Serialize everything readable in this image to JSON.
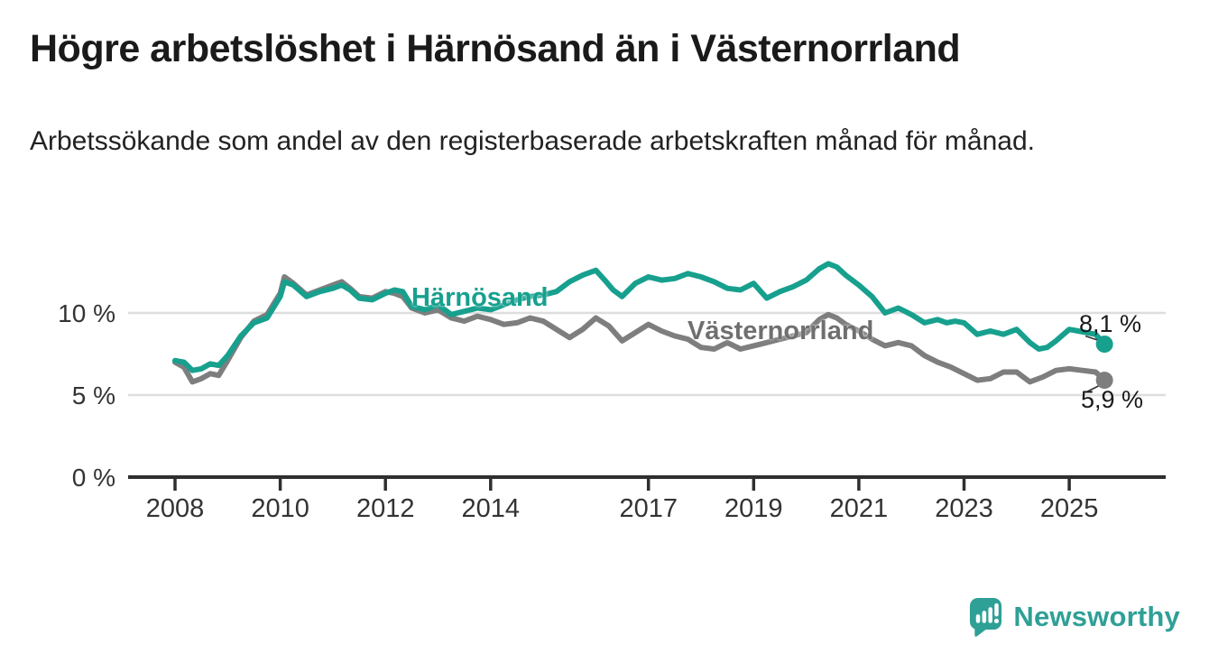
{
  "header": {
    "title": "Högre arbetslöshet i Härnösand än i Västernorrland",
    "subtitle": "Arbetssökande som andel av den registerbaserade arbetskraften månad för månad."
  },
  "chart_data": {
    "type": "line",
    "title": "Högre arbetslöshet i Härnösand än i Västernorrland",
    "subtitle": "Arbetssökande som andel av den registerbaserade arbetskraften månad för månad.",
    "xlabel": "",
    "ylabel": "",
    "unit": "%",
    "grid": "horizontal",
    "legend_position": "inline-labels-on-lines",
    "x_axis": {
      "tick_years": [
        2008,
        2010,
        2012,
        2014,
        2017,
        2019,
        2021,
        2023,
        2025
      ],
      "tick_labels": [
        "2008",
        "2010",
        "2012",
        "2014",
        "2017",
        "2019",
        "2021",
        "2023",
        "2025"
      ],
      "data_range": [
        2008.0,
        2025.67
      ]
    },
    "y_axis": {
      "ticks": [
        {
          "value": 0,
          "label": "0 %",
          "grid": false
        },
        {
          "value": 5,
          "label": "5 %",
          "grid": true
        },
        {
          "value": 10,
          "label": "10 %",
          "grid": true
        }
      ],
      "range": [
        0,
        13.5
      ]
    },
    "series": [
      {
        "name": "Härnösand",
        "color": "#17A08E",
        "end_label": "8,1 %",
        "end_value": 8.1,
        "x": [
          2008.0,
          2008.17,
          2008.33,
          2008.5,
          2008.67,
          2008.83,
          2009.0,
          2009.25,
          2009.5,
          2009.75,
          2010.0,
          2010.08,
          2010.25,
          2010.5,
          2010.75,
          2011.0,
          2011.17,
          2011.33,
          2011.5,
          2011.75,
          2012.0,
          2012.17,
          2012.33,
          2012.5,
          2012.75,
          2013.0,
          2013.25,
          2013.5,
          2013.75,
          2014.0,
          2014.25,
          2014.5,
          2014.75,
          2015.0,
          2015.25,
          2015.5,
          2015.75,
          2016.0,
          2016.17,
          2016.33,
          2016.5,
          2016.75,
          2017.0,
          2017.25,
          2017.5,
          2017.75,
          2018.0,
          2018.25,
          2018.5,
          2018.75,
          2019.0,
          2019.25,
          2019.5,
          2019.75,
          2020.0,
          2020.25,
          2020.42,
          2020.58,
          2020.75,
          2021.0,
          2021.25,
          2021.5,
          2021.75,
          2022.0,
          2022.25,
          2022.5,
          2022.67,
          2022.83,
          2023.0,
          2023.25,
          2023.5,
          2023.75,
          2024.0,
          2024.25,
          2024.42,
          2024.58,
          2024.75,
          2025.0,
          2025.17,
          2025.33,
          2025.5,
          2025.67
        ],
        "y": [
          7.1,
          7.0,
          6.5,
          6.6,
          6.9,
          6.8,
          7.4,
          8.6,
          9.4,
          9.7,
          11.0,
          11.9,
          11.7,
          11.0,
          11.3,
          11.5,
          11.7,
          11.4,
          10.9,
          10.8,
          11.2,
          11.4,
          11.3,
          10.4,
          10.2,
          10.5,
          9.9,
          10.1,
          10.3,
          10.2,
          10.5,
          10.8,
          11.0,
          11.1,
          11.3,
          11.9,
          12.3,
          12.6,
          12.0,
          11.4,
          11.0,
          11.8,
          12.2,
          12.0,
          12.1,
          12.4,
          12.2,
          11.9,
          11.5,
          11.4,
          11.8,
          10.9,
          11.3,
          11.6,
          12.0,
          12.7,
          13.0,
          12.8,
          12.3,
          11.7,
          11.0,
          10.0,
          10.3,
          9.9,
          9.4,
          9.6,
          9.4,
          9.5,
          9.4,
          8.7,
          8.9,
          8.7,
          9.0,
          8.2,
          7.8,
          7.9,
          8.3,
          9.0,
          8.9,
          8.8,
          8.7,
          8.1
        ]
      },
      {
        "name": "Västernorrland",
        "color": "#7E7E7E",
        "end_label": "5,9 %",
        "end_value": 5.9,
        "x": [
          2008.0,
          2008.17,
          2008.33,
          2008.5,
          2008.67,
          2008.83,
          2009.0,
          2009.25,
          2009.5,
          2009.75,
          2010.0,
          2010.08,
          2010.25,
          2010.5,
          2010.75,
          2011.0,
          2011.17,
          2011.33,
          2011.5,
          2011.75,
          2012.0,
          2012.17,
          2012.33,
          2012.5,
          2012.75,
          2013.0,
          2013.25,
          2013.5,
          2013.75,
          2014.0,
          2014.25,
          2014.5,
          2014.75,
          2015.0,
          2015.25,
          2015.5,
          2015.75,
          2016.0,
          2016.25,
          2016.5,
          2016.75,
          2017.0,
          2017.25,
          2017.5,
          2017.75,
          2018.0,
          2018.25,
          2018.5,
          2018.75,
          2019.0,
          2019.25,
          2019.5,
          2019.75,
          2020.0,
          2020.25,
          2020.42,
          2020.58,
          2020.75,
          2021.0,
          2021.25,
          2021.5,
          2021.75,
          2022.0,
          2022.25,
          2022.5,
          2022.75,
          2023.0,
          2023.25,
          2023.5,
          2023.75,
          2024.0,
          2024.25,
          2024.5,
          2024.75,
          2025.0,
          2025.25,
          2025.5,
          2025.67
        ],
        "y": [
          7.0,
          6.7,
          5.8,
          6.0,
          6.3,
          6.2,
          7.1,
          8.5,
          9.5,
          9.9,
          11.2,
          12.2,
          11.8,
          11.1,
          11.4,
          11.7,
          11.9,
          11.5,
          11.0,
          10.9,
          11.3,
          11.2,
          11.0,
          10.3,
          10.0,
          10.2,
          9.7,
          9.5,
          9.8,
          9.6,
          9.3,
          9.4,
          9.7,
          9.5,
          9.0,
          8.5,
          9.0,
          9.7,
          9.2,
          8.3,
          8.8,
          9.3,
          8.9,
          8.6,
          8.4,
          7.9,
          7.8,
          8.2,
          7.8,
          8.0,
          8.2,
          8.4,
          8.6,
          8.8,
          9.6,
          9.9,
          9.7,
          9.3,
          8.9,
          8.4,
          8.0,
          8.2,
          8.0,
          7.4,
          7.0,
          6.7,
          6.3,
          5.9,
          6.0,
          6.4,
          6.4,
          5.8,
          6.1,
          6.5,
          6.6,
          6.5,
          6.4,
          5.9
        ]
      }
    ]
  },
  "footer": {
    "brand": "Newsworthy"
  },
  "colors": {
    "harnosand": "#17A08E",
    "vasternorrland": "#7E7E7E",
    "grid": "#DEDEDE",
    "axis": "#2F2F2F",
    "text": "#1A1A1A",
    "logo": "#2FA096"
  }
}
